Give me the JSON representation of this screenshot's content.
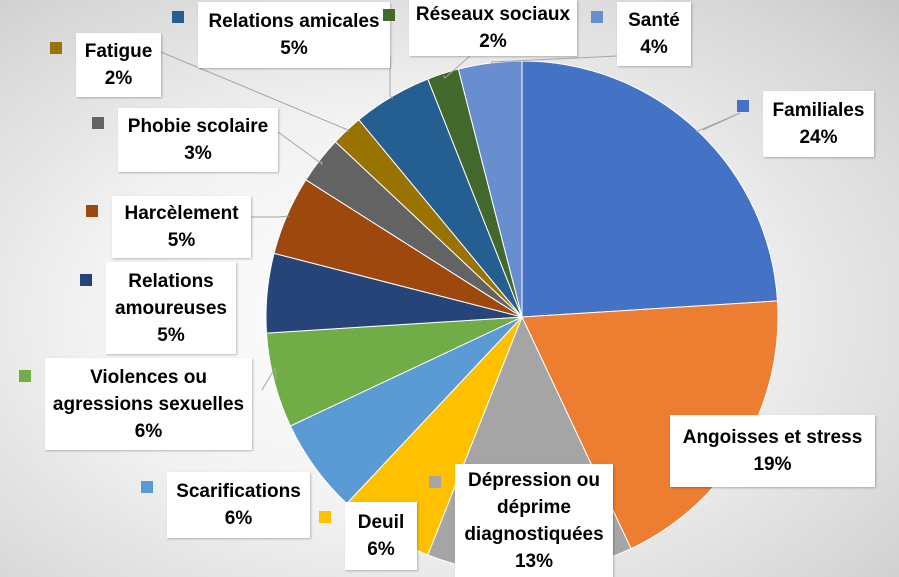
{
  "chart_data": {
    "type": "pie",
    "title": "",
    "slices": [
      {
        "label": "Familiales",
        "value": 24,
        "text": "24%",
        "color": "#4472C4"
      },
      {
        "label": "Angoisses et stress",
        "value": 19,
        "text": "19%",
        "color": "#ED7D31"
      },
      {
        "label": "Dépression ou déprime diagnostiquées",
        "value": 13,
        "text": "13%",
        "color": "#A5A5A5"
      },
      {
        "label": "Deuil",
        "value": 6,
        "text": "6%",
        "color": "#FFC000"
      },
      {
        "label": "Scarifications",
        "value": 6,
        "text": "6%",
        "color": "#5B9BD5"
      },
      {
        "label": "Violences ou agressions sexuelles",
        "value": 6,
        "text": "6%",
        "color": "#70AD47"
      },
      {
        "label": "Relations amoureuses",
        "value": 5,
        "text": "5%",
        "color": "#264478"
      },
      {
        "label": "Harcèlement",
        "value": 5,
        "text": "5%",
        "color": "#9E480E"
      },
      {
        "label": "Phobie scolaire",
        "value": 3,
        "text": "3%",
        "color": "#636363"
      },
      {
        "label": "Fatigue",
        "value": 2,
        "text": "2%",
        "color": "#997300"
      },
      {
        "label": "Relations amicales",
        "value": 5,
        "text": "5%",
        "color": "#255E91"
      },
      {
        "label": "Réseaux sociaux",
        "value": 2,
        "text": "2%",
        "color": "#43682B"
      },
      {
        "label": "Santé",
        "value": 4,
        "text": "4%",
        "color": "#698ED0"
      }
    ],
    "legend": "none",
    "data_labels": "callouts"
  }
}
